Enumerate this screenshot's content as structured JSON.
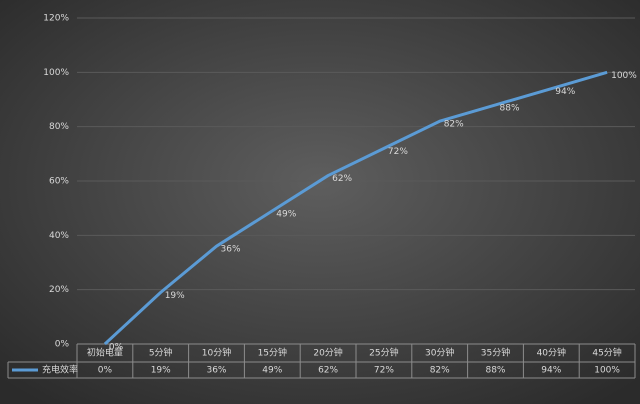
{
  "chart_data": {
    "type": "line",
    "categories": [
      "初始电量",
      "5分钟",
      "10分钟",
      "15分钟",
      "20分钟",
      "25分钟",
      "30分钟",
      "35分钟",
      "40分钟",
      "45分钟"
    ],
    "series": [
      {
        "name": "充电效率",
        "color": "#5b9bd5",
        "values": [
          0,
          19,
          36,
          49,
          62,
          72,
          82,
          88,
          94,
          100
        ],
        "value_labels": [
          "0%",
          "19%",
          "36%",
          "49%",
          "62%",
          "72%",
          "82%",
          "88%",
          "94%",
          "100%"
        ]
      }
    ],
    "ylim": [
      0,
      120
    ],
    "yticks": [
      {
        "value": 0,
        "label": "0%"
      },
      {
        "value": 20,
        "label": "20%"
      },
      {
        "value": 40,
        "label": "40%"
      },
      {
        "value": 60,
        "label": "60%"
      },
      {
        "value": 80,
        "label": "80%"
      },
      {
        "value": 100,
        "label": "100%"
      },
      {
        "value": 120,
        "label": "120%"
      }
    ],
    "grid": true
  }
}
